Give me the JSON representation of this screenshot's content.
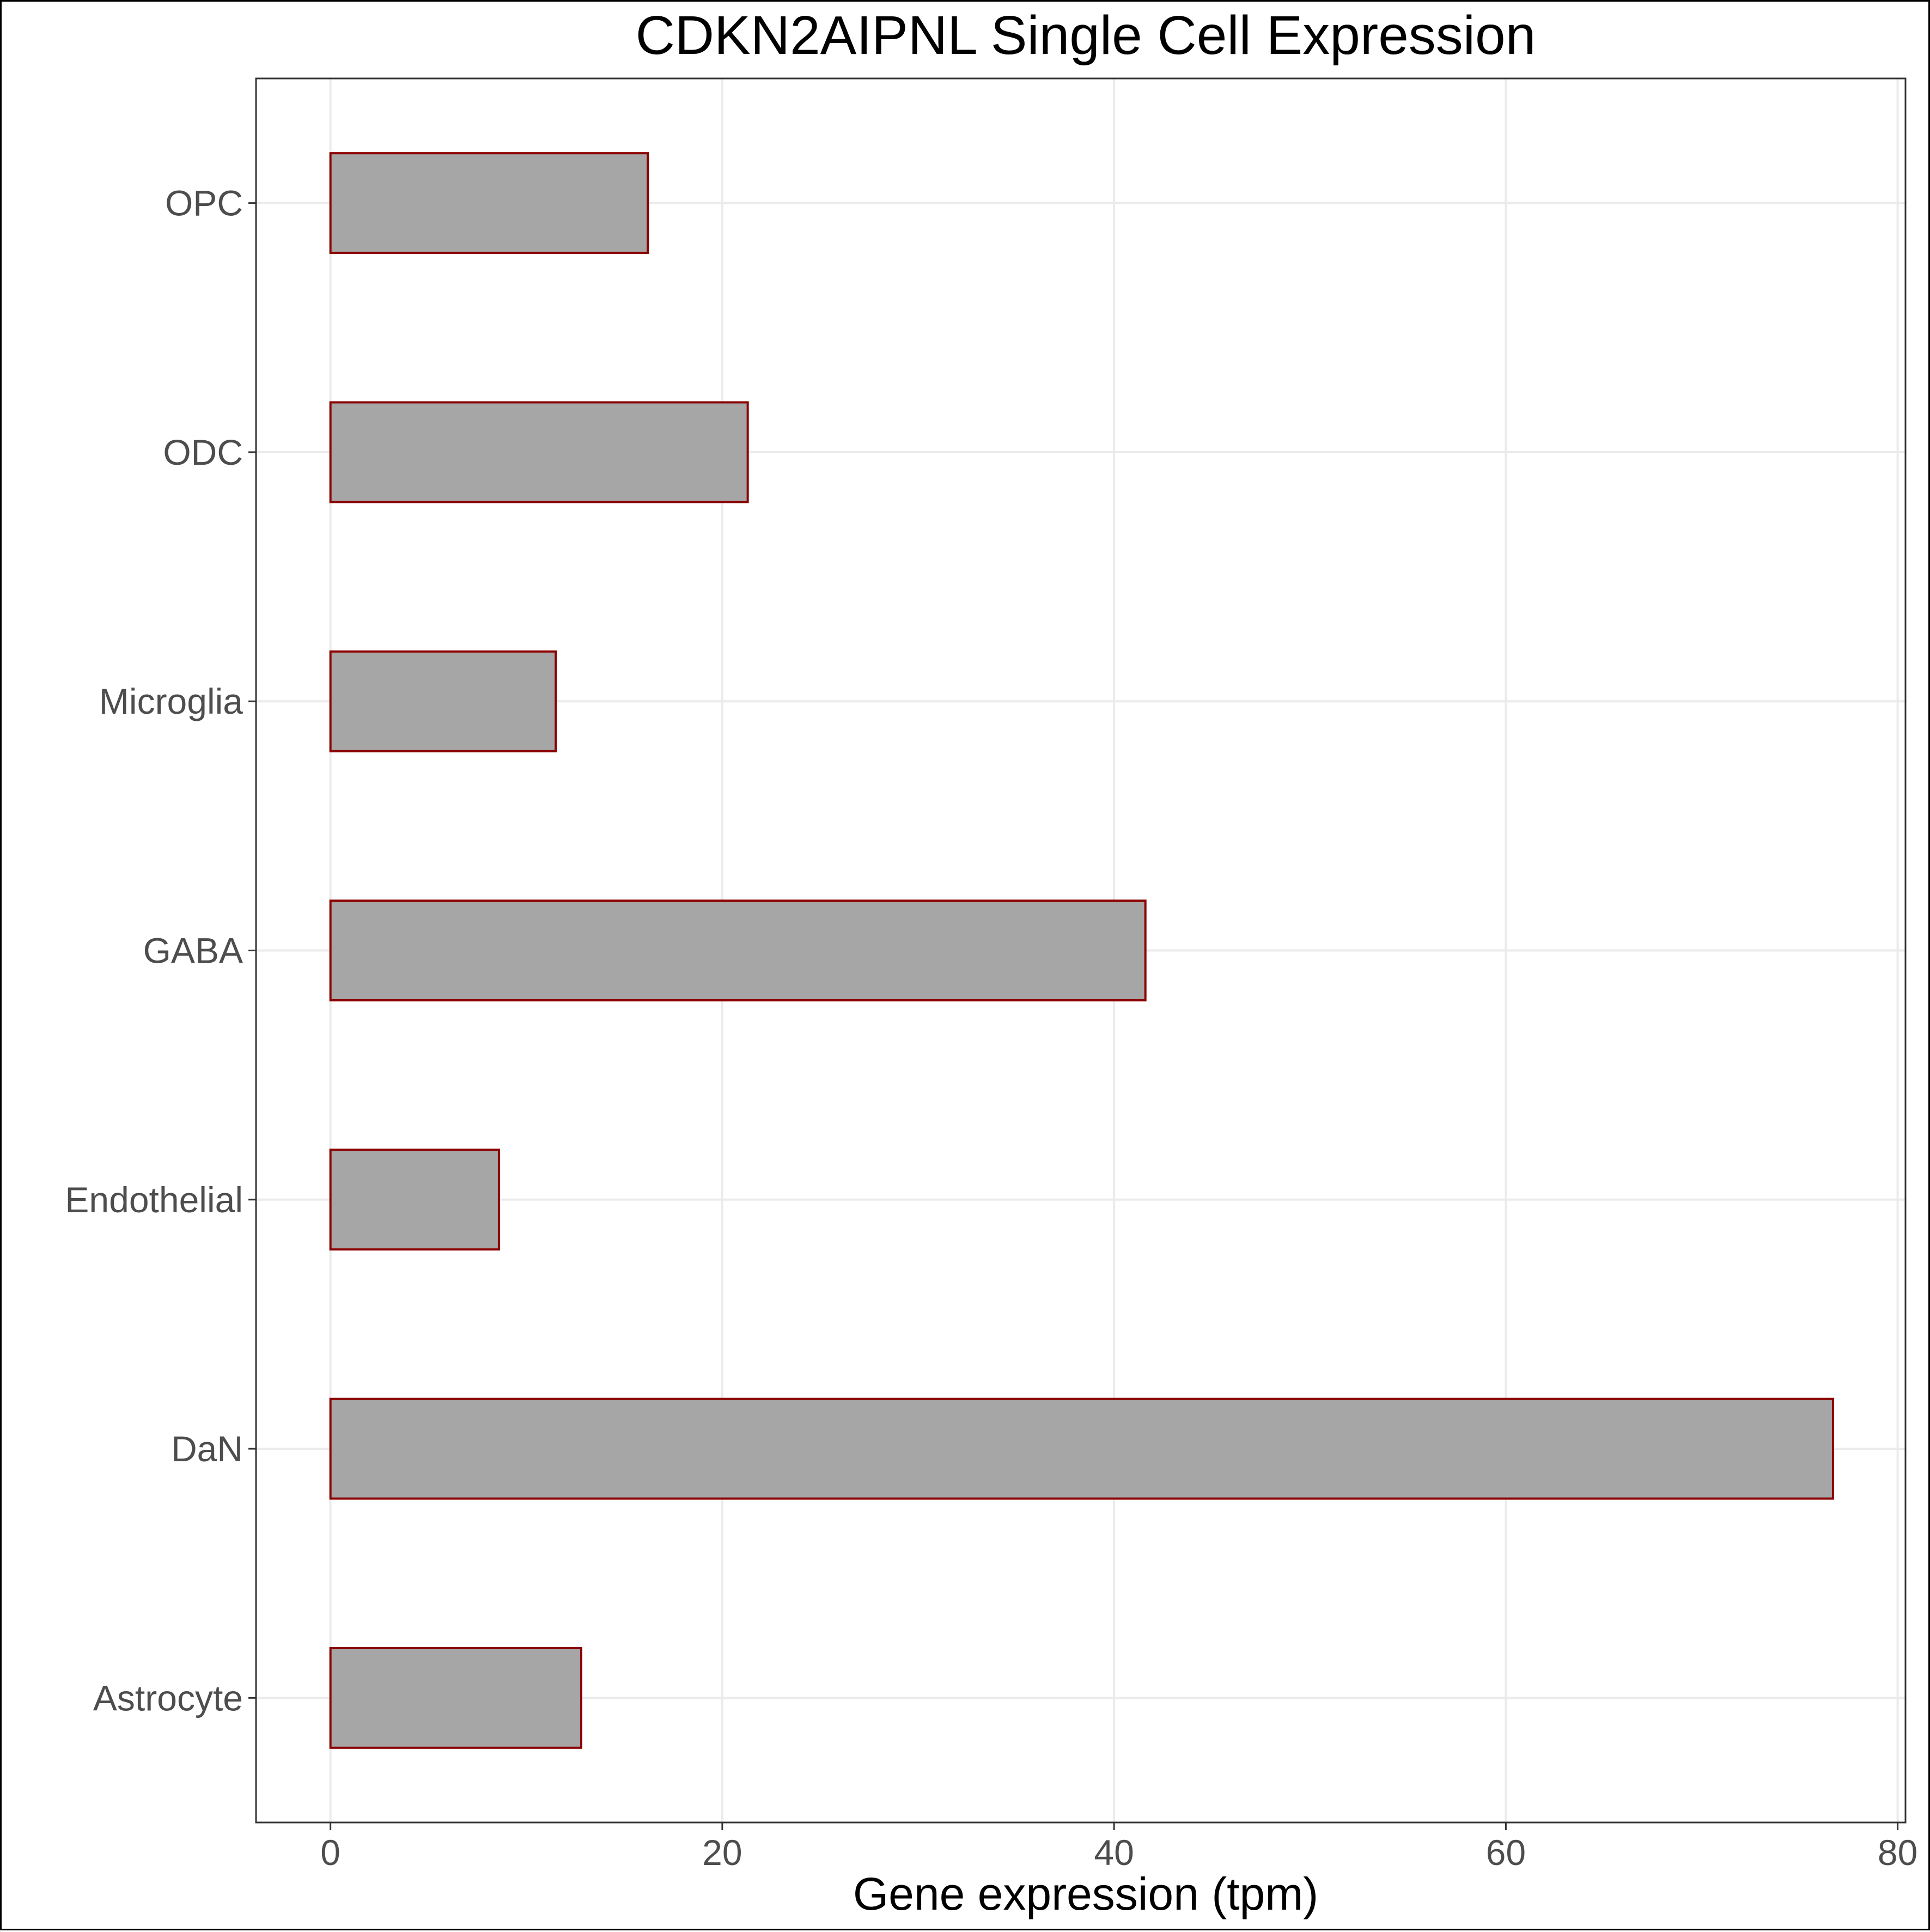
{
  "chart_data": {
    "type": "bar",
    "orientation": "horizontal",
    "title": "CDKN2AIPNL Single Cell Expression",
    "xlabel": "Gene expression (tpm)",
    "ylabel": "",
    "categories": [
      "Astrocyte",
      "DaN",
      "Endothelial",
      "GABA",
      "Microglia",
      "ODC",
      "OPC"
    ],
    "values": [
      12.8,
      76.7,
      8.6,
      41.6,
      11.5,
      21.3,
      16.2
    ],
    "xlim": [
      -3.8,
      80.4
    ],
    "xticks": [
      0,
      20,
      40,
      60,
      80
    ],
    "grid": true,
    "legend": "none",
    "colors": {
      "bar_fill": "#a6a6a6",
      "bar_stroke": "#8b0000",
      "grid": "#ebebeb",
      "axis": "#333333"
    }
  }
}
